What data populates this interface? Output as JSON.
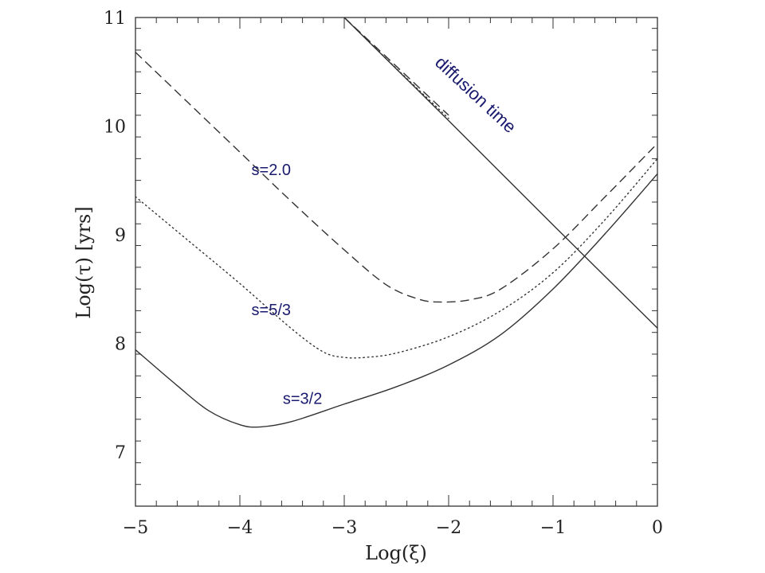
{
  "chart_data": {
    "type": "line",
    "title": "",
    "xlabel": "Log(ξ)",
    "ylabel": "Log(τ) [yrs]",
    "xlim": [
      -5,
      0
    ],
    "ylim": [
      6.5,
      11
    ],
    "xticks": [
      -5,
      -4,
      -3,
      -2,
      -1,
      0
    ],
    "xtick_labels": [
      "−5",
      "−4",
      "−3",
      "−2",
      "−1",
      "0"
    ],
    "yticks": [
      7,
      8,
      9,
      10,
      11
    ],
    "ytick_labels": [
      "7",
      "8",
      "9",
      "10",
      "11"
    ],
    "grid": false,
    "series": [
      {
        "name": "s=2.0",
        "style": "dashed",
        "color": "#333333",
        "x": [
          -5.0,
          -4.5,
          -4.0,
          -3.5,
          -3.0,
          -2.6,
          -2.3,
          -2.1,
          -1.8,
          -1.5,
          -1.0,
          -0.5,
          0.0
        ],
        "y": [
          10.68,
          10.22,
          9.76,
          9.3,
          8.86,
          8.54,
          8.41,
          8.38,
          8.4,
          8.5,
          8.87,
          9.35,
          9.84
        ]
      },
      {
        "name": "s=5/3",
        "style": "dotted",
        "color": "#333333",
        "x": [
          -5.0,
          -4.5,
          -4.0,
          -3.5,
          -3.2,
          -3.0,
          -2.8,
          -2.5,
          -2.0,
          -1.5,
          -1.0,
          -0.5,
          0.0
        ],
        "y": [
          9.35,
          8.95,
          8.55,
          8.13,
          7.92,
          7.87,
          7.87,
          7.91,
          8.06,
          8.3,
          8.65,
          9.14,
          9.7
        ]
      },
      {
        "name": "s=3/2",
        "style": "solid",
        "color": "#333333",
        "x": [
          -5.0,
          -4.6,
          -4.3,
          -4.0,
          -3.8,
          -3.5,
          -3.0,
          -2.5,
          -2.0,
          -1.5,
          -1.0,
          -0.5,
          0.0
        ],
        "y": [
          7.94,
          7.61,
          7.38,
          7.25,
          7.23,
          7.28,
          7.44,
          7.6,
          7.8,
          8.08,
          8.5,
          9.01,
          9.56
        ]
      },
      {
        "name": "diffusion time",
        "style": "solid",
        "color": "#333333",
        "x": [
          -3.0,
          -2.0,
          -1.0,
          0.0
        ],
        "y": [
          11.0,
          10.05,
          9.09,
          8.14
        ]
      },
      {
        "name": "diffusion time (dashed)",
        "style": "dashed",
        "color": "#333333",
        "x": [
          -3.0,
          -2.5,
          -2.0
        ],
        "y": [
          11.0,
          10.55,
          10.1
        ]
      },
      {
        "name": "diffusion time (dotted)",
        "style": "dotted",
        "color": "#333333",
        "x": [
          -3.0,
          -2.5,
          -2.0
        ],
        "y": [
          11.0,
          10.53,
          10.07
        ]
      }
    ],
    "annotations": [
      {
        "text": "s=2.0",
        "x": -3.7,
        "y": 9.55
      },
      {
        "text": "s=5/3",
        "x": -3.7,
        "y": 8.26
      },
      {
        "text": "s=3/2",
        "x": -3.4,
        "y": 7.44
      },
      {
        "text": "diffusion time",
        "x": -1.78,
        "y": 10.25,
        "rotation": 43
      }
    ]
  }
}
